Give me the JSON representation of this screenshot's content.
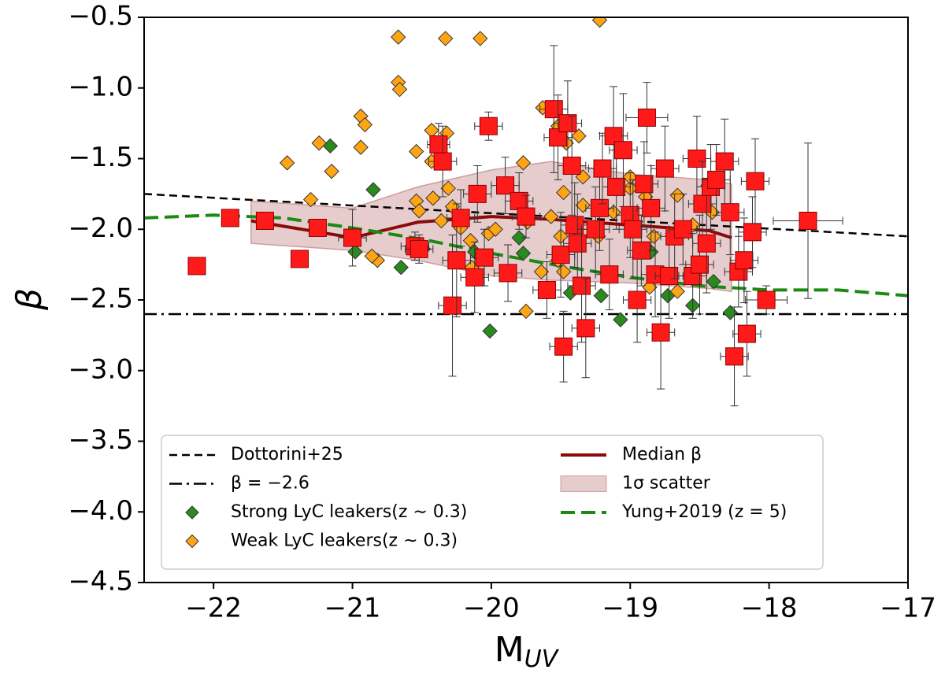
{
  "chart_data": {
    "type": "scatter",
    "xlabel": "M",
    "xlabel_sub": "UV",
    "ylabel": "β",
    "xlim": [
      -22.5,
      -17
    ],
    "ylim": [
      -0.5,
      -4.5
    ],
    "xticks": [
      {
        "value": -22,
        "label": "−22"
      },
      {
        "value": -21,
        "label": "−21"
      },
      {
        "value": -20,
        "label": "−20"
      },
      {
        "value": -19,
        "label": "−19"
      },
      {
        "value": -18,
        "label": "−18"
      },
      {
        "value": -17,
        "label": "−17"
      }
    ],
    "yticks": [
      {
        "value": -0.5,
        "label": "−0.5"
      },
      {
        "value": -1.0,
        "label": "−1.0"
      },
      {
        "value": -1.5,
        "label": "−1.5"
      },
      {
        "value": -2.0,
        "label": "−2.0"
      },
      {
        "value": -2.5,
        "label": "−2.5"
      },
      {
        "value": -3.0,
        "label": "−3.0"
      },
      {
        "value": -3.5,
        "label": "−3.5"
      },
      {
        "value": -4.0,
        "label": "−4.0"
      },
      {
        "value": -4.5,
        "label": "−4.5"
      }
    ],
    "legend": "lower center",
    "series": [
      {
        "name": "Dottorini+25",
        "style": "dashed",
        "color": "#000000",
        "x": [
          -22.5,
          -17
        ],
        "values": [
          -1.75,
          -2.05
        ]
      },
      {
        "name": "β = −2.6",
        "style": "dashdot",
        "color": "#000000",
        "x": [
          -22.5,
          -17
        ],
        "values": [
          -2.6,
          -2.6
        ]
      },
      {
        "name": "Strong LyC leakers(z ∼ 0.3)",
        "style": "diamond",
        "color": "#2a8a1e",
        "x": [
          -21.16,
          -20.85,
          -20.98,
          -20.65,
          -20.49,
          -20.12,
          -20.01,
          -19.8,
          -19.77,
          -19.43,
          -19.21,
          -19.07,
          -18.85,
          -18.73,
          -18.55,
          -18.28,
          -18.4
        ],
        "values": [
          -1.41,
          -1.72,
          -2.16,
          -2.27,
          -2.14,
          -2.16,
          -2.72,
          -2.06,
          -2.17,
          -2.45,
          -2.47,
          -2.64,
          -2.16,
          -2.47,
          -2.54,
          -2.59,
          -2.37
        ]
      },
      {
        "name": "Weak LyC leakers(z ∼ 0.3)",
        "style": "diamond",
        "color": "#ffa514",
        "x": [
          -20.67,
          -20.33,
          -20.08,
          -19.22,
          -20.67,
          -20.66,
          -20.94,
          -20.91,
          -20.94,
          -21.24,
          -21.15,
          -21.47,
          -21.3,
          -20.43,
          -20.32,
          -20.54,
          -20.43,
          -20.31,
          -20.42,
          -20.54,
          -20.52,
          -20.36,
          -20.28,
          -20.22,
          -20.15,
          -20.02,
          -19.97,
          -19.77,
          -19.63,
          -19.52,
          -19.46,
          -19.37,
          -19.34,
          -19.34,
          -19.48,
          -19.5,
          -19.52,
          -19.48,
          -19.57,
          -19.74,
          -19.23,
          -19.12,
          -19.0,
          -19.0,
          -18.89,
          -18.83,
          -18.86,
          -18.66,
          -18.66,
          -18.55,
          -18.44,
          -18.41,
          -19.75,
          -20.82,
          -20.86,
          -20.14,
          -19.64
        ],
        "values": [
          -0.64,
          -0.65,
          -0.65,
          -0.52,
          -0.96,
          -1.01,
          -1.2,
          -1.26,
          -1.42,
          -1.39,
          -1.59,
          -1.53,
          -1.79,
          -1.3,
          -1.32,
          -1.45,
          -1.52,
          -1.71,
          -1.78,
          -1.8,
          -1.87,
          -1.94,
          -1.84,
          -1.99,
          -2.08,
          -2.03,
          -2.0,
          -1.53,
          -1.14,
          -1.27,
          -1.39,
          -1.34,
          -1.63,
          -1.83,
          -1.74,
          -2.05,
          -2.22,
          -2.3,
          -1.91,
          -1.95,
          -2.05,
          -1.88,
          -1.71,
          -1.63,
          -1.77,
          -2.05,
          -2.41,
          -1.76,
          -2.44,
          -1.97,
          -1.69,
          -1.88,
          -2.58,
          -2.22,
          -2.19,
          -2.27,
          -2.3
        ]
      },
      {
        "name": "Median β",
        "style": "solid",
        "color": "#8b0a0a",
        "x": [
          -21.73,
          -21.0,
          -20.53,
          -20.0,
          -19.57,
          -19.0,
          -18.43,
          -18.27
        ],
        "values": [
          -1.94,
          -2.06,
          -1.95,
          -1.91,
          -1.93,
          -1.97,
          -2.01,
          -2.06
        ]
      },
      {
        "name": "1σ scatter",
        "style": "band",
        "color": "#b86e6e",
        "x": [
          -21.73,
          -21.0,
          -20.53,
          -20.0,
          -19.57,
          -19.0,
          -18.43,
          -18.27
        ],
        "upper": [
          -1.8,
          -1.85,
          -1.7,
          -1.58,
          -1.52,
          -1.61,
          -1.65,
          -1.68
        ],
        "lower": [
          -2.1,
          -2.15,
          -2.22,
          -2.33,
          -2.36,
          -2.38,
          -2.42,
          -2.44
        ]
      },
      {
        "name": "Yung+2019 (z = 5)",
        "style": "longdash",
        "color": "#1a8a12",
        "x": [
          -22.5,
          -22,
          -21.5,
          -21,
          -20.5,
          -20,
          -19.5,
          -19,
          -18.5,
          -18,
          -17.5,
          -17
        ],
        "values": [
          -1.92,
          -1.9,
          -1.92,
          -1.99,
          -2.07,
          -2.17,
          -2.26,
          -2.34,
          -2.4,
          -2.43,
          -2.43,
          -2.47
        ]
      },
      {
        "style": "square",
        "color": "#ff1a1a",
        "x": [
          -22.12,
          -21.88,
          -21.63,
          -21.38,
          -21.25,
          -21.0,
          -20.55,
          -20.52,
          -20.38,
          -20.35,
          -20.28,
          -20.25,
          -20.22,
          -20.12,
          -20.1,
          -20.05,
          -20.02,
          -19.9,
          -19.88,
          -19.8,
          -19.75,
          -19.6,
          -19.55,
          -19.52,
          -19.5,
          -19.48,
          -19.45,
          -19.42,
          -19.4,
          -19.38,
          -19.35,
          -19.32,
          -19.25,
          -19.22,
          -19.2,
          -19.15,
          -19.12,
          -19.1,
          -19.05,
          -19.0,
          -18.98,
          -18.95,
          -18.92,
          -18.9,
          -18.88,
          -18.85,
          -18.82,
          -18.78,
          -18.75,
          -18.72,
          -18.68,
          -18.62,
          -18.55,
          -18.52,
          -18.5,
          -18.48,
          -18.45,
          -18.42,
          -18.38,
          -18.32,
          -18.28,
          -18.25,
          -18.22,
          -18.18,
          -18.16,
          -18.12,
          -18.1,
          -18.02,
          -17.72
        ],
        "values": [
          -2.26,
          -1.92,
          -1.94,
          -2.21,
          -1.99,
          -2.06,
          -2.12,
          -2.14,
          -1.4,
          -1.52,
          -2.54,
          -2.22,
          -1.92,
          -2.34,
          -1.75,
          -2.2,
          -1.27,
          -1.69,
          -2.31,
          -1.8,
          -1.91,
          -2.43,
          -1.15,
          -1.35,
          -2.18,
          -2.83,
          -1.25,
          -1.55,
          -1.97,
          -2.1,
          -2.4,
          -2.7,
          -2.0,
          -1.85,
          -1.57,
          -2.32,
          -1.34,
          -1.7,
          -1.44,
          -1.9,
          -2.0,
          -2.5,
          -2.15,
          -1.68,
          -1.21,
          -1.85,
          -2.32,
          -2.73,
          -1.57,
          -2.33,
          -2.05,
          -2.0,
          -2.33,
          -1.5,
          -2.25,
          -1.82,
          -2.1,
          -1.7,
          -1.65,
          -1.52,
          -1.88,
          -2.9,
          -2.3,
          -2.22,
          -2.74,
          -2.02,
          -1.66,
          -2.5,
          -1.94
        ],
        "yerr": [
          0.05,
          0.05,
          0.05,
          0.05,
          0.05,
          0.2,
          0.1,
          0.1,
          0.15,
          0.25,
          0.5,
          0.4,
          0.2,
          0.25,
          0.2,
          0.2,
          0.1,
          0.2,
          0.2,
          0.2,
          0.15,
          0.2,
          0.45,
          0.3,
          0.3,
          0.25,
          0.3,
          0.35,
          0.3,
          0.35,
          0.4,
          0.35,
          0.3,
          0.3,
          0.25,
          0.25,
          0.35,
          0.3,
          0.4,
          0.3,
          0.35,
          0.3,
          0.25,
          0.3,
          0.25,
          0.3,
          0.3,
          0.4,
          0.3,
          0.3,
          0.3,
          0.25,
          0.3,
          0.3,
          0.35,
          0.3,
          0.35,
          0.3,
          0.25,
          0.3,
          0.3,
          0.35,
          0.25,
          0.3,
          0.3,
          0.25,
          0.3,
          0.1,
          0.55
        ],
        "xerr": [
          0.05,
          0.05,
          0.05,
          0.05,
          0.05,
          0.1,
          0.1,
          0.1,
          0.08,
          0.1,
          0.1,
          0.1,
          0.1,
          0.1,
          0.1,
          0.1,
          0.1,
          0.1,
          0.1,
          0.1,
          0.1,
          0.1,
          0.1,
          0.1,
          0.1,
          0.1,
          0.1,
          0.1,
          0.1,
          0.1,
          0.1,
          0.1,
          0.1,
          0.1,
          0.1,
          0.1,
          0.1,
          0.1,
          0.1,
          0.1,
          0.1,
          0.1,
          0.1,
          0.1,
          0.15,
          0.1,
          0.1,
          0.1,
          0.1,
          0.1,
          0.1,
          0.1,
          0.1,
          0.1,
          0.1,
          0.1,
          0.1,
          0.1,
          0.1,
          0.1,
          0.1,
          0.1,
          0.1,
          0.1,
          0.1,
          0.1,
          0.1,
          0.15,
          0.25
        ]
      }
    ]
  }
}
